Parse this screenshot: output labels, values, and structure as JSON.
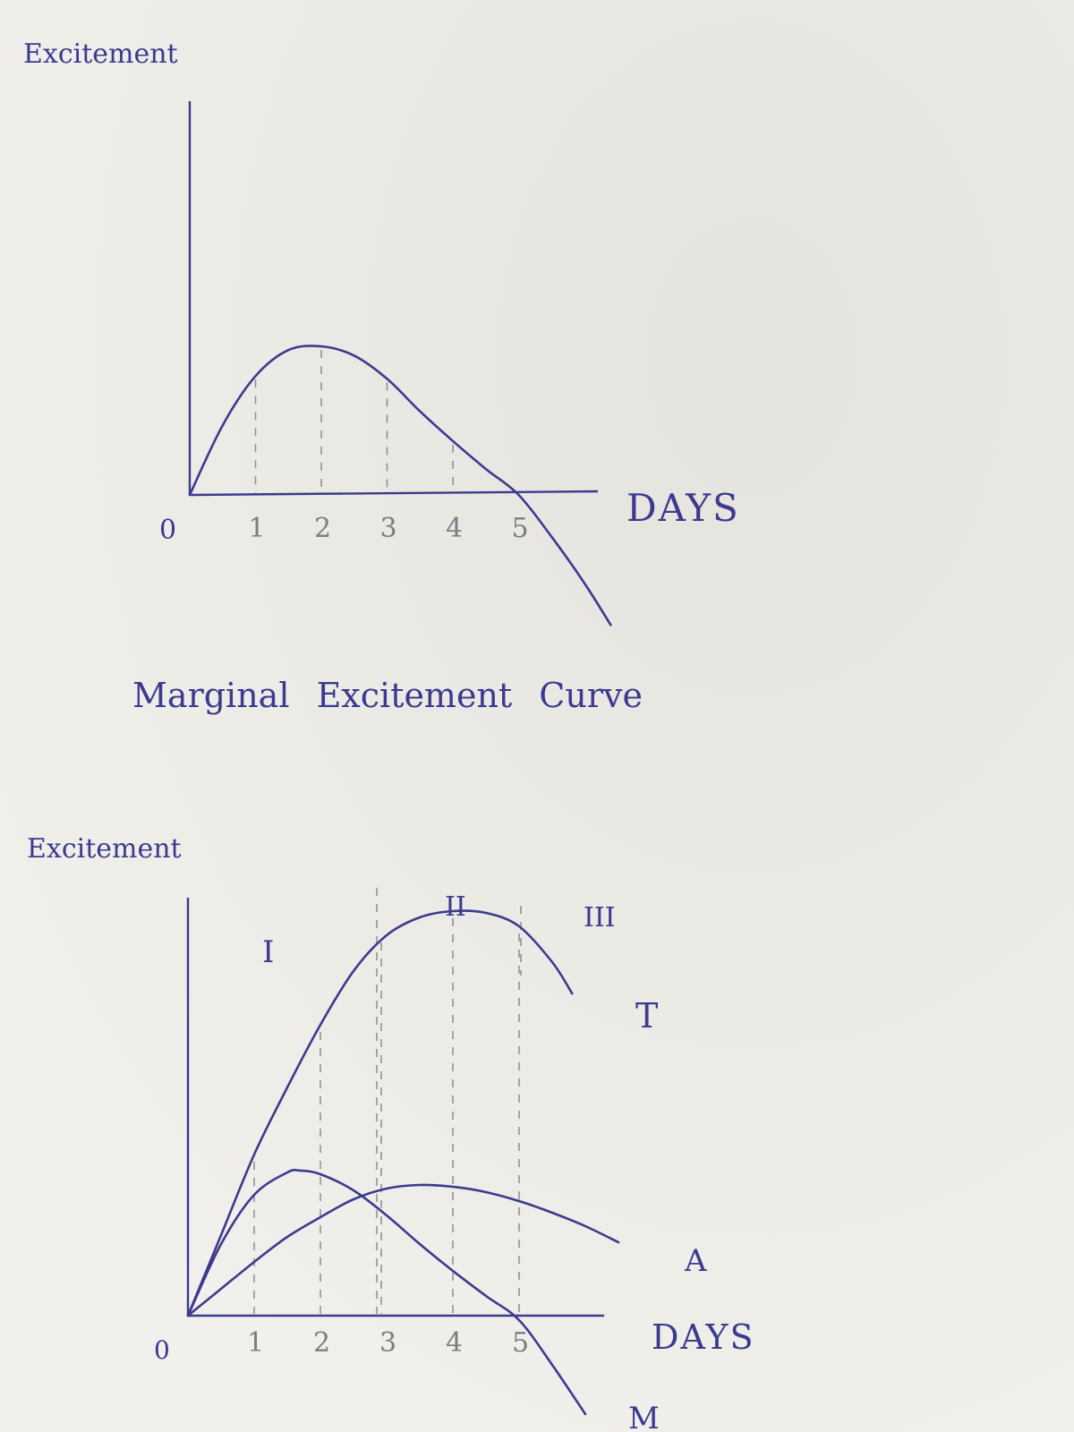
{
  "colors": {
    "paper": "#e9e8e3",
    "ink": "#3b3a8f",
    "pencil": "#7d7c80"
  },
  "chart_data": [
    {
      "type": "line",
      "title": "Marginal Excitement Curve",
      "ylabel": "Excitement",
      "xlabel": "DAYS",
      "origin_label": "0",
      "x_ticks": [
        "1",
        "2",
        "3",
        "4",
        "5"
      ],
      "xlim": [
        0,
        6.4
      ],
      "ylim": [
        -1.45,
        2.1
      ],
      "series": [
        {
          "x": [
            0,
            0.5,
            1,
            1.5,
            2,
            2.5,
            3,
            3.5,
            4,
            4.5,
            5,
            5.5,
            6,
            6.4
          ],
          "values": [
            0,
            0.75,
            1.28,
            1.56,
            1.6,
            1.5,
            1.25,
            0.9,
            0.58,
            0.28,
            0,
            -0.45,
            -0.95,
            -1.4
          ]
        }
      ],
      "grid": false,
      "guides": "dashed vertical lines at days 1-4"
    },
    {
      "type": "line",
      "ylabel": "Excitement",
      "xlabel": "DAYS",
      "origin_label": "0",
      "x_ticks": [
        "1",
        "2",
        "3",
        "4",
        "5"
      ],
      "stage_labels": [
        "I",
        "II",
        "III"
      ],
      "xlim": [
        0,
        6.4
      ],
      "ylim": [
        -1.3,
        5.3
      ],
      "series": [
        {
          "name": "T",
          "x": [
            0,
            0.5,
            1,
            1.5,
            2,
            2.5,
            3,
            3.5,
            4,
            4.5,
            5,
            5.5,
            5.8
          ],
          "values": [
            0,
            0.9,
            1.8,
            2.55,
            3.25,
            3.85,
            4.25,
            4.45,
            4.52,
            4.5,
            4.35,
            3.95,
            3.6
          ]
        },
        {
          "name": "A",
          "x": [
            0,
            0.5,
            1,
            1.5,
            2,
            2.5,
            3,
            3.5,
            4,
            4.5,
            5,
            5.5,
            6,
            6.5
          ],
          "values": [
            0,
            0.3,
            0.6,
            0.88,
            1.1,
            1.3,
            1.42,
            1.46,
            1.44,
            1.38,
            1.28,
            1.15,
            1,
            0.82
          ]
        },
        {
          "name": "M",
          "x": [
            0,
            0.5,
            1,
            1.5,
            1.7,
            2,
            2.5,
            3,
            3.5,
            4,
            4.5,
            5,
            5.5,
            6
          ],
          "values": [
            0,
            0.8,
            1.35,
            1.6,
            1.62,
            1.58,
            1.4,
            1.12,
            0.8,
            0.5,
            0.22,
            -0.05,
            -0.55,
            -1.1
          ]
        }
      ],
      "grid": false,
      "guides": "dashed vertical lines at days 1-5 plus stage dividers near days 2.6 and 4.8"
    }
  ]
}
